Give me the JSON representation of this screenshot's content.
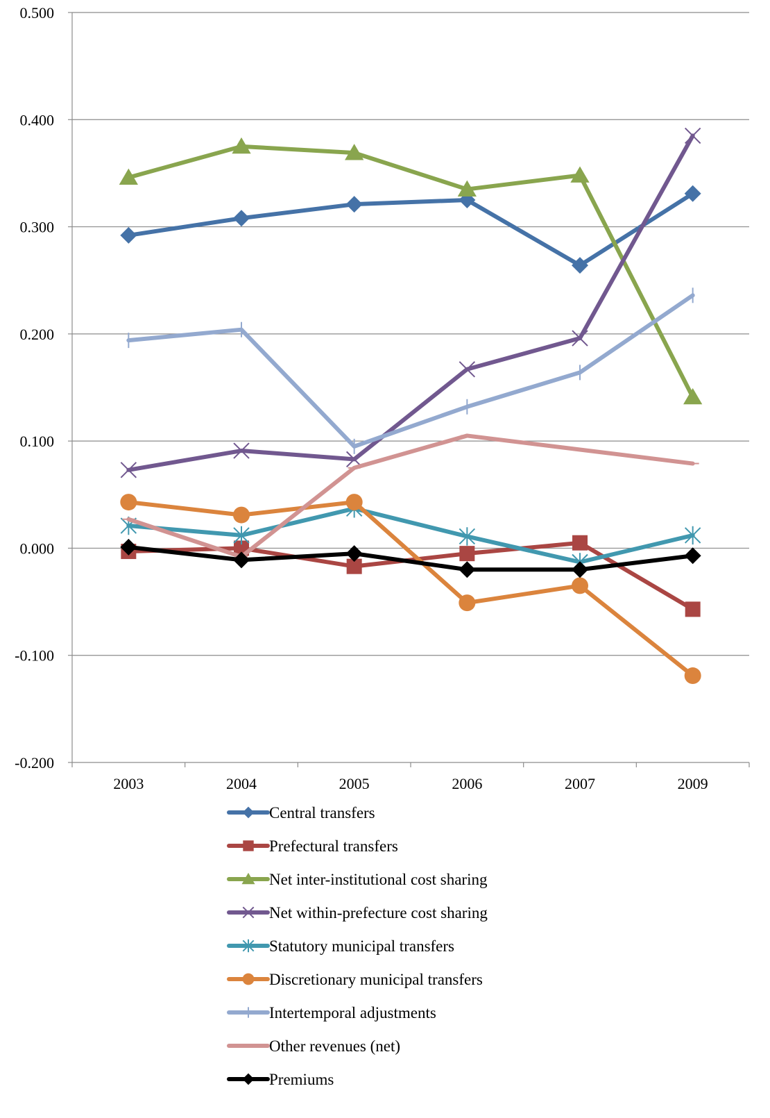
{
  "chart_data": {
    "type": "line",
    "title": "",
    "xlabel": "",
    "ylabel": "",
    "categories": [
      "2003",
      "2004",
      "2005",
      "2006",
      "2007",
      "2009"
    ],
    "ylim": [
      -0.2,
      0.5
    ],
    "yticks": [
      -0.2,
      -0.1,
      0.0,
      0.1,
      0.2,
      0.3,
      0.4,
      0.5
    ],
    "ytick_labels": [
      "-0.200",
      "-0.100",
      "0.000",
      "0.100",
      "0.200",
      "0.300",
      "0.400",
      "0.500"
    ],
    "grid": true,
    "legend_position": "bottom",
    "series": [
      {
        "name": "Central transfers",
        "color": "#4572A7",
        "marker": "diamond",
        "values": [
          0.292,
          0.308,
          0.321,
          0.325,
          0.264,
          0.331
        ]
      },
      {
        "name": "Prefectural transfers",
        "color": "#AA4643",
        "marker": "square",
        "values": [
          -0.003,
          0.0,
          -0.017,
          -0.005,
          0.005,
          -0.057
        ]
      },
      {
        "name": "Net inter-institutional cost sharing",
        "color": "#89A54E",
        "marker": "triangle",
        "values": [
          0.346,
          0.375,
          0.369,
          0.335,
          0.348,
          0.141
        ]
      },
      {
        "name": "Net within-prefecture cost sharing",
        "color": "#71588F",
        "marker": "x",
        "values": [
          0.073,
          0.091,
          0.083,
          0.167,
          0.196,
          0.385
        ]
      },
      {
        "name": "Statutory municipal transfers",
        "color": "#4198AF",
        "marker": "asterisk",
        "values": [
          0.021,
          0.012,
          0.037,
          0.011,
          -0.013,
          0.012
        ]
      },
      {
        "name": "Discretionary municipal transfers",
        "color": "#DB843D",
        "marker": "circle",
        "values": [
          0.043,
          0.031,
          0.043,
          -0.051,
          -0.035,
          -0.119
        ]
      },
      {
        "name": "Intertemporal adjustments",
        "color": "#93A9CF",
        "marker": "plus",
        "values": [
          0.194,
          0.204,
          0.095,
          0.132,
          0.164,
          0.236
        ]
      },
      {
        "name": "Other revenues (net)",
        "color": "#D19392",
        "marker": "dash",
        "values": [
          0.027,
          -0.008,
          0.075,
          0.105,
          0.092,
          0.079
        ]
      },
      {
        "name": "Premiums",
        "color": "#000000",
        "marker": "diamond",
        "values": [
          0.001,
          -0.011,
          -0.005,
          -0.02,
          -0.02,
          -0.007
        ]
      }
    ]
  }
}
